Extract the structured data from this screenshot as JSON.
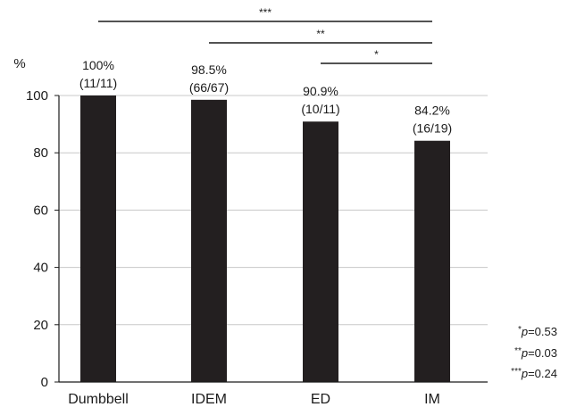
{
  "chart_data": {
    "type": "bar",
    "ylabel": "%",
    "ylim": [
      0,
      100
    ],
    "yticks": [
      0,
      20,
      40,
      60,
      80,
      100
    ],
    "grid": true,
    "categories": [
      "Dumbbell",
      "IDEM",
      "ED",
      "IM"
    ],
    "values": [
      100,
      98.5,
      90.9,
      84.2
    ],
    "value_labels": [
      "100%",
      "98.5%",
      "90.9%",
      "84.2%"
    ],
    "count_labels": [
      "(11/11)",
      "(66/67)",
      "(10/11)",
      "(16/19)"
    ],
    "bar_color": "#231f20",
    "significance": [
      {
        "from": "Dumbbell",
        "to": "IM",
        "mark": "***"
      },
      {
        "from": "IDEM",
        "to": "IM",
        "mark": "**"
      },
      {
        "from": "ED",
        "to": "IM",
        "mark": "*"
      }
    ],
    "p_values": [
      {
        "stars": "*",
        "p": "p",
        "value": "=0.53"
      },
      {
        "stars": "**",
        "p": "p",
        "value": "=0.03"
      },
      {
        "stars": "***",
        "p": "p",
        "value": "=0.24"
      }
    ]
  }
}
